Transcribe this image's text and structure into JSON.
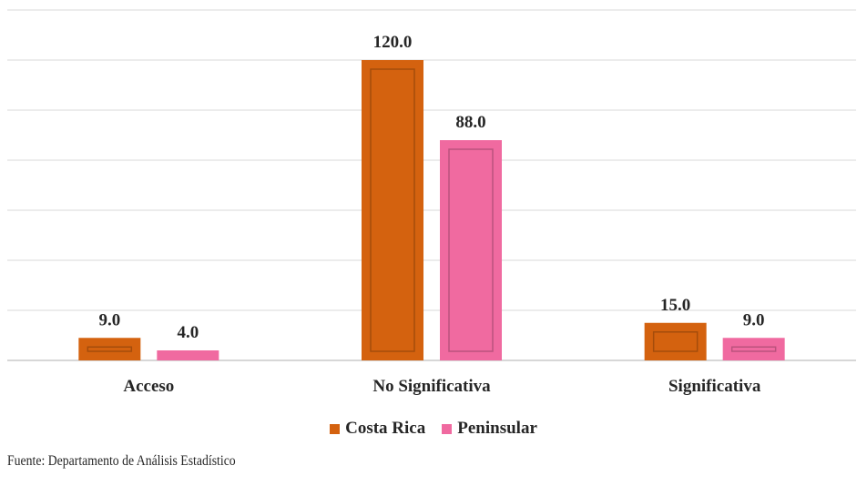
{
  "chart_data": {
    "type": "bar",
    "categories": [
      "Acceso",
      "No Significativa",
      "Significativa"
    ],
    "series": [
      {
        "name": "Costa Rica",
        "values": [
          9.0,
          120.0,
          15.0
        ],
        "color": "#d4620f"
      },
      {
        "name": "Peninsular",
        "values": [
          4.0,
          88.0,
          9.0
        ],
        "color": "#f06aa0"
      }
    ],
    "value_labels": [
      [
        "9.0",
        "120.0",
        "15.0"
      ],
      [
        "4.0",
        "88.0",
        "9.0"
      ]
    ],
    "ylim": [
      0,
      140
    ],
    "grid": true,
    "legend_position": "bottom"
  },
  "source_note": "Fuente: Departamento de Análisis Estadístico"
}
